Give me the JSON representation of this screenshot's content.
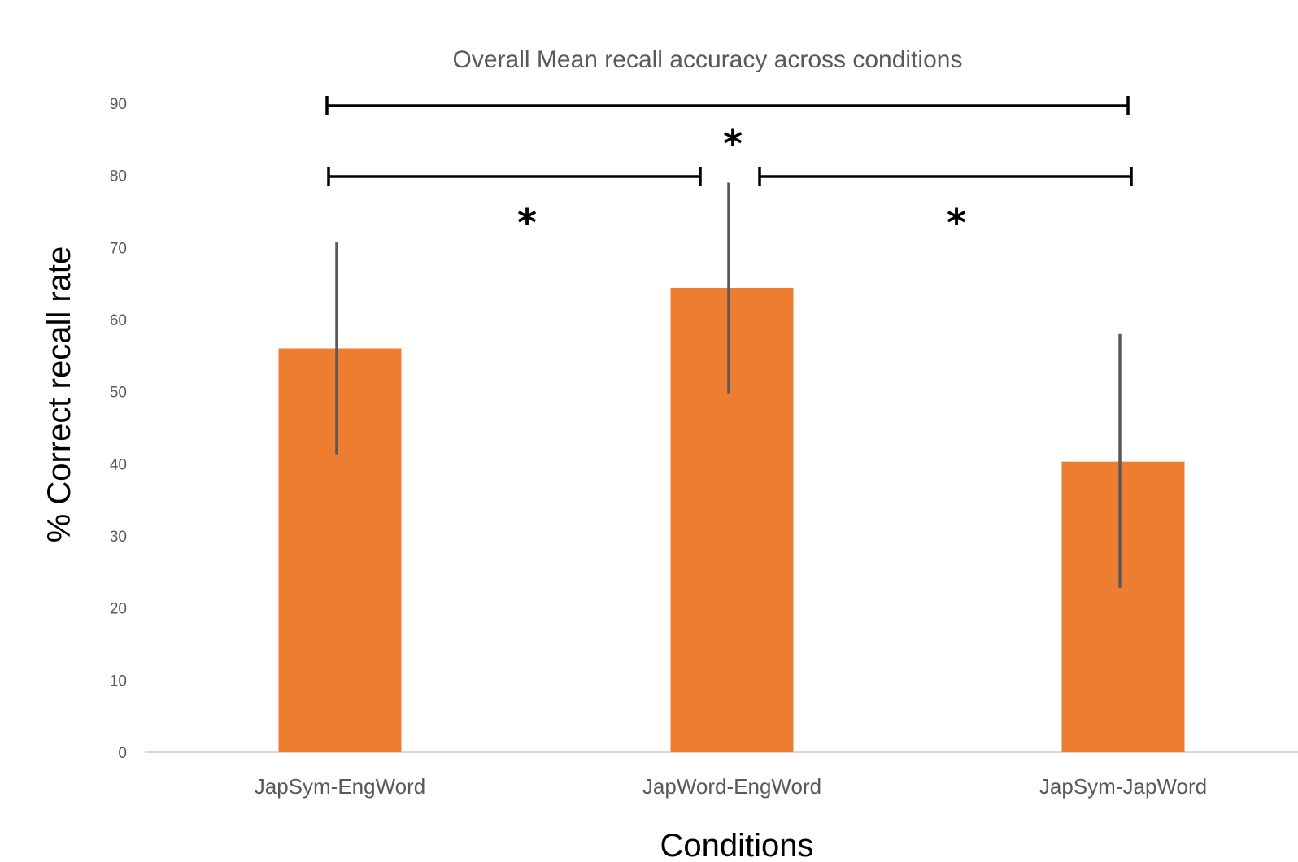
{
  "chart_data": {
    "type": "bar",
    "title": "Overall Mean recall accuracy across conditions",
    "xlabel": "Conditions",
    "ylabel": "% Correct recall rate",
    "categories": [
      "JapSym-EngWord",
      "JapWord-EngWord",
      "JapSym-JapWord"
    ],
    "values": [
      56,
      64.4,
      40.3
    ],
    "error_low": [
      41.3,
      49.8,
      22.8
    ],
    "error_high": [
      70.7,
      79.0,
      58.0
    ],
    "ylim": [
      0,
      90
    ],
    "yticks": [
      0,
      10,
      20,
      30,
      40,
      50,
      60,
      70,
      80,
      90
    ],
    "grid": false,
    "legend": "none",
    "bar_color": "#ED7D31",
    "error_color": "#595959",
    "significance": [
      {
        "from": 0,
        "to": 1,
        "label": "*"
      },
      {
        "from": 1,
        "to": 2,
        "label": "*"
      },
      {
        "from": 0,
        "to": 2,
        "label": "*"
      }
    ]
  }
}
